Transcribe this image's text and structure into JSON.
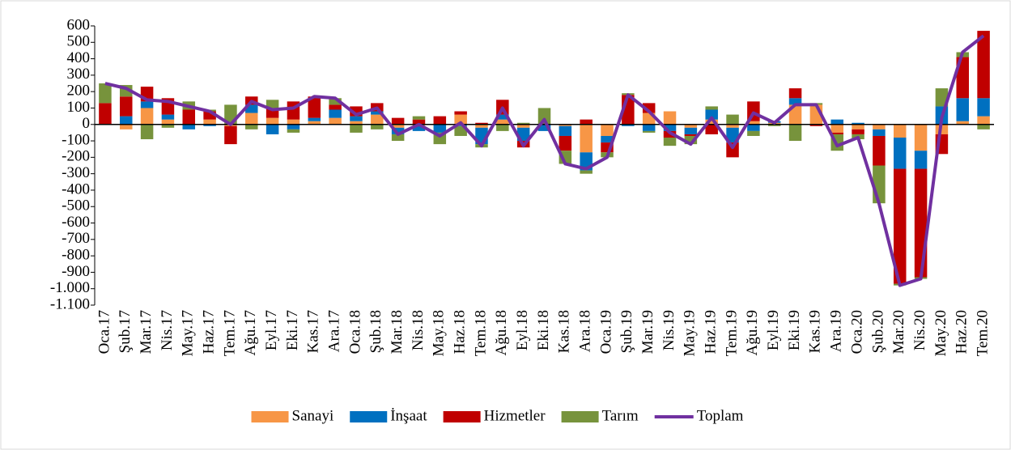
{
  "chart_data": {
    "type": "stacked-bar-line",
    "categories": [
      "Oca.17",
      "Şub.17",
      "Mar.17",
      "Nis.17",
      "May.17",
      "Haz.17",
      "Tem.17",
      "Ağu.17",
      "Eyl.17",
      "Eki.17",
      "Kas.17",
      "Ara.17",
      "Oca.18",
      "Şub.18",
      "Mar.18",
      "Nis.18",
      "May.18",
      "Haz.18",
      "Tem.18",
      "Ağu.18",
      "Eyl.18",
      "Eki.18",
      "Kas.18",
      "Ara.18",
      "Oca.19",
      "Şub.19",
      "Mar.19",
      "Nis.19",
      "May.19",
      "Haz.19",
      "Tem.19",
      "Ağu.19",
      "Eyl.19",
      "Eki.19",
      "Kas.19",
      "Ara.19",
      "Oca.20",
      "Şub.20",
      "Mar.20",
      "Nis.20",
      "May.20",
      "Haz.20",
      "Tem.20"
    ],
    "series": [
      {
        "name": "Sanayi",
        "color": "#f79646",
        "type": "bar",
        "values": [
          0,
          -30,
          100,
          30,
          0,
          30,
          -10,
          70,
          40,
          30,
          20,
          40,
          20,
          60,
          -20,
          -10,
          0,
          60,
          -20,
          30,
          -20,
          0,
          -10,
          -170,
          -70,
          0,
          70,
          80,
          -20,
          30,
          -20,
          20,
          10,
          120,
          120,
          -50,
          -30,
          -30,
          -80,
          -160,
          -60,
          20,
          50
        ]
      },
      {
        "name": "İnşaat",
        "color": "#0070c0",
        "type": "bar",
        "values": [
          0,
          50,
          40,
          30,
          -30,
          -10,
          0,
          50,
          -60,
          -30,
          20,
          50,
          30,
          20,
          -40,
          -30,
          -50,
          -10,
          -100,
          30,
          -80,
          -40,
          -60,
          -110,
          -40,
          -10,
          -40,
          -40,
          -40,
          60,
          -90,
          -40,
          10,
          40,
          0,
          30,
          10,
          -40,
          -190,
          -110,
          110,
          140,
          110
        ]
      },
      {
        "name": "Hizmetler",
        "color": "#c00000",
        "type": "bar",
        "values": [
          130,
          120,
          90,
          100,
          90,
          50,
          -110,
          50,
          60,
          110,
          130,
          30,
          60,
          50,
          40,
          30,
          50,
          20,
          10,
          90,
          -40,
          0,
          -90,
          30,
          -60,
          180,
          60,
          -40,
          -10,
          -60,
          -90,
          120,
          0,
          60,
          -10,
          -10,
          -30,
          -180,
          -700,
          -660,
          -120,
          250,
          410
        ]
      },
      {
        "name": "Tarım",
        "color": "#77933c",
        "type": "bar",
        "values": [
          120,
          70,
          -90,
          -20,
          50,
          10,
          120,
          -30,
          50,
          -20,
          0,
          40,
          -50,
          -30,
          -40,
          20,
          -70,
          -60,
          -20,
          -40,
          10,
          100,
          -80,
          -20,
          -30,
          10,
          -10,
          -50,
          -50,
          20,
          60,
          -30,
          -10,
          -100,
          10,
          -100,
          -30,
          -230,
          -10,
          -10,
          110,
          30,
          -30
        ]
      },
      {
        "name": "Toplam",
        "color": "#7030a0",
        "type": "line",
        "values": [
          250,
          220,
          150,
          140,
          110,
          80,
          0,
          140,
          90,
          100,
          170,
          160,
          60,
          100,
          -60,
          0,
          -70,
          10,
          -130,
          100,
          -130,
          30,
          -240,
          -270,
          -200,
          180,
          80,
          -50,
          -120,
          40,
          -140,
          70,
          10,
          120,
          120,
          -130,
          -80,
          -480,
          -980,
          -940,
          40,
          440,
          540
        ]
      }
    ],
    "ylim": [
      -1100,
      600
    ],
    "yticks": [
      {
        "value": -1100,
        "label": "-1.100"
      },
      {
        "value": -1000,
        "label": "-1.000"
      },
      -900,
      -800,
      -700,
      -600,
      -500,
      -400,
      -300,
      -200,
      -100,
      0,
      100,
      200,
      300,
      400,
      500,
      600
    ],
    "legend": "bottom"
  }
}
